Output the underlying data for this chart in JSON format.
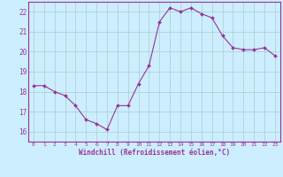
{
  "x": [
    0,
    1,
    2,
    3,
    4,
    5,
    6,
    7,
    8,
    9,
    10,
    11,
    12,
    13,
    14,
    15,
    16,
    17,
    18,
    19,
    20,
    21,
    22,
    23
  ],
  "y": [
    18.3,
    18.3,
    18.0,
    17.8,
    17.3,
    16.6,
    16.4,
    16.1,
    17.3,
    17.3,
    18.4,
    19.3,
    21.5,
    22.2,
    22.0,
    22.2,
    21.9,
    21.7,
    20.8,
    20.2,
    20.1,
    20.1,
    20.2,
    19.8
  ],
  "ylim": [
    15.5,
    22.5
  ],
  "yticks": [
    16,
    17,
    18,
    19,
    20,
    21,
    22
  ],
  "xticks": [
    0,
    1,
    2,
    3,
    4,
    5,
    6,
    7,
    8,
    9,
    10,
    11,
    12,
    13,
    14,
    15,
    16,
    17,
    18,
    19,
    20,
    21,
    22,
    23
  ],
  "xlabel": "Windchill (Refroidissement éolien,°C)",
  "line_color": "#993399",
  "marker": "D",
  "marker_size": 2,
  "bg_color": "#cceeff",
  "grid_color": "#aacccc",
  "axis_color": "#993399",
  "tick_color": "#993399",
  "label_color": "#993399"
}
